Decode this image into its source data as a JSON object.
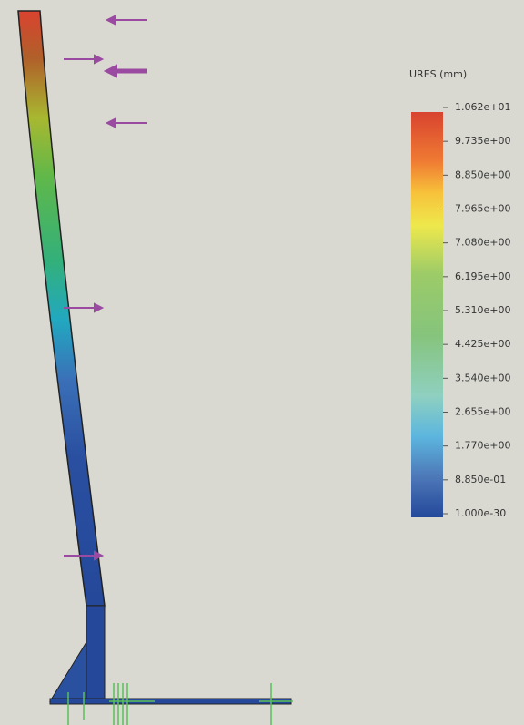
{
  "legend": {
    "title": "URES (mm)",
    "labels": [
      "1.062e+01",
      "9.735e+00",
      "8.850e+00",
      "7.965e+00",
      "7.080e+00",
      "6.195e+00",
      "5.310e+00",
      "4.425e+00",
      "3.540e+00",
      "2.655e+00",
      "1.770e+00",
      "8.850e-01",
      "1.000e-30"
    ]
  }
}
